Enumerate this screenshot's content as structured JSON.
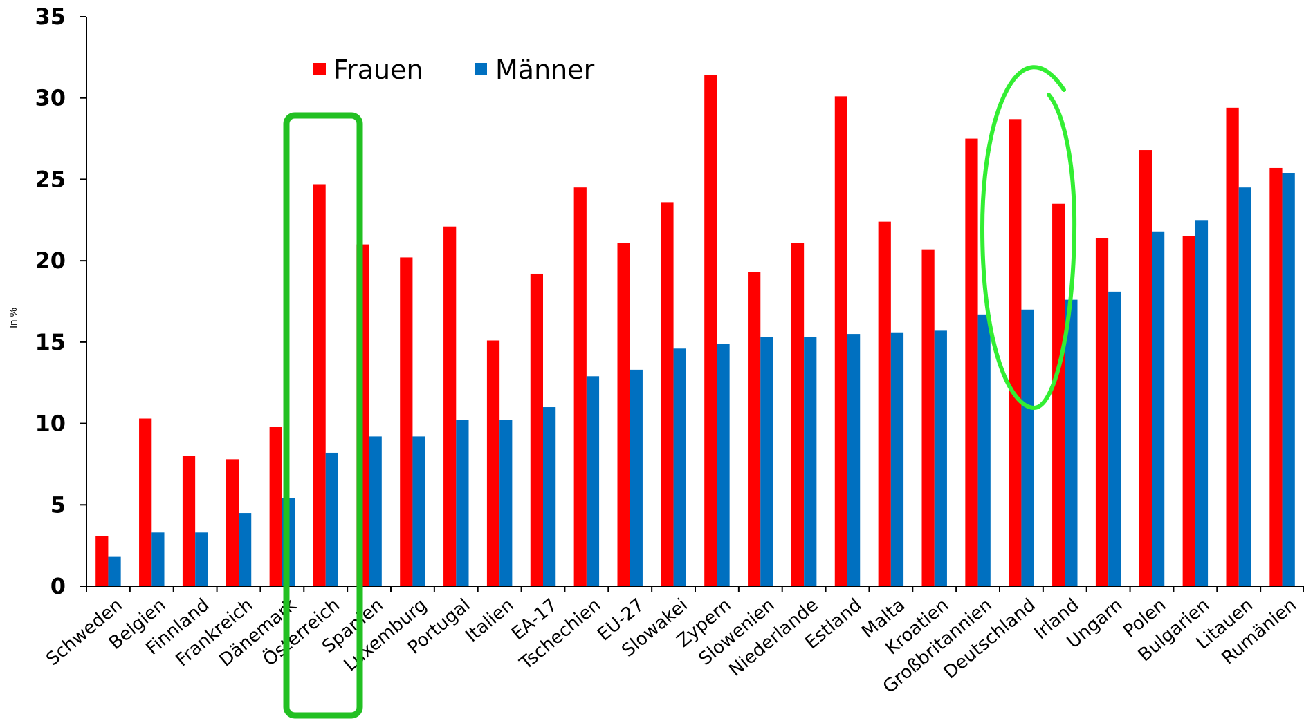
{
  "chart_data": {
    "type": "bar",
    "ylabel": "In %",
    "ylim": [
      0,
      35
    ],
    "yticks": [
      "0",
      "5",
      "10",
      "15",
      "20",
      "25",
      "30",
      "35"
    ],
    "legend_position": "top-left",
    "colors": {
      "Frauen": "#ff0000",
      "Männer": "#0070c0"
    },
    "categories": [
      "Schweden",
      "Belgien",
      "Finnland",
      "Frankreich",
      "Dänemark",
      "Österreich",
      "Spanien",
      "Luxemburg",
      "Portugal",
      "Italien",
      "EA-17",
      "Tschechien",
      "EU-27",
      "Slowakei",
      "Zypern",
      "Slowenien",
      "Niederlande",
      "Estland",
      "Malta",
      "Kroatien",
      "Großbritannien",
      "Deutschland",
      "Irland",
      "Ungarn",
      "Polen",
      "Bulgarien",
      "Litauen",
      "Rumänien"
    ],
    "series": [
      {
        "name": "Frauen",
        "values": [
          3.1,
          10.3,
          8.0,
          7.8,
          9.8,
          24.7,
          21.0,
          20.2,
          22.1,
          15.1,
          19.2,
          24.5,
          21.1,
          23.6,
          31.4,
          19.3,
          21.1,
          30.1,
          22.4,
          20.7,
          27.5,
          28.7,
          23.5,
          21.4,
          26.8,
          21.5,
          29.4,
          25.7
        ]
      },
      {
        "name": "Männer",
        "values": [
          1.8,
          3.3,
          3.3,
          4.5,
          5.4,
          8.2,
          9.2,
          9.2,
          10.2,
          10.2,
          11.0,
          12.9,
          13.3,
          14.6,
          14.9,
          15.3,
          15.3,
          15.5,
          15.6,
          15.7,
          16.7,
          17.0,
          17.6,
          18.1,
          21.8,
          22.5,
          24.5,
          25.4
        ]
      }
    ],
    "annotations": [
      {
        "shape": "rectangle",
        "target": "Österreich",
        "color": "#22c022"
      },
      {
        "shape": "ellipse",
        "target": "Deutschland",
        "color": "#33ee33"
      }
    ]
  }
}
